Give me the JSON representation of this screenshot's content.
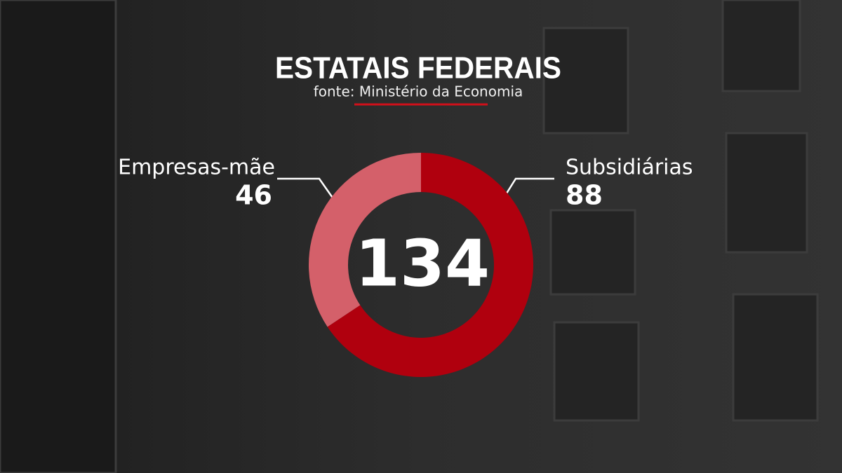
{
  "chart_data": {
    "type": "donut",
    "title": "ESTATAIS FEDERAIS",
    "subtitle": "fonte: Ministério da Economia",
    "categories": [
      "Empresas-mãe",
      "Subsidiárias"
    ],
    "values": [
      46,
      88
    ],
    "colors": [
      "#d4606a",
      "#b0000e"
    ],
    "center_label": 134
  }
}
